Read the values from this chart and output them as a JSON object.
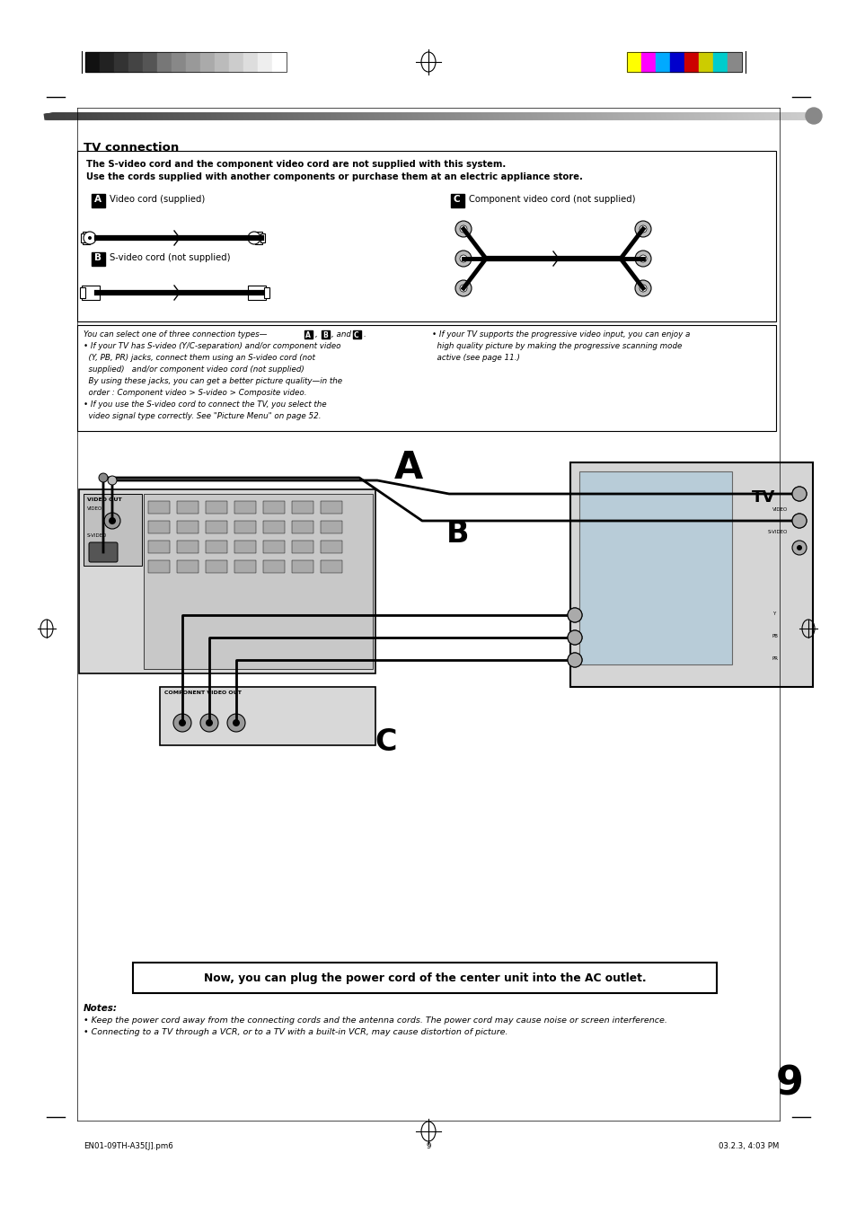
{
  "page_bg": "#ffffff",
  "grayscale_colors": [
    "#111111",
    "#222222",
    "#333333",
    "#444444",
    "#555555",
    "#777777",
    "#888888",
    "#999999",
    "#aaaaaa",
    "#bbbbbb",
    "#cccccc",
    "#dddddd",
    "#eeeeee",
    "#ffffff"
  ],
  "color_bars": [
    "#ffff00",
    "#ff00ff",
    "#00aaff",
    "#0000cc",
    "#cc0000",
    "#cccc00",
    "#00cccc",
    "#888888"
  ],
  "title_text": "TV connection",
  "box1_line1": "The S-video cord and the component video cord are not supplied with this system.",
  "box1_line2": "Use the cords supplied with another components or purchase them at an electric appliance store.",
  "text_A": "Video cord (supplied)",
  "text_B": "S-video cord (not supplied)",
  "text_C": "Component video cord (not supplied)",
  "info_left": [
    "You can select one of three connection types—",
    "• If your TV has S-video (Y/C-separation) and/or component video",
    "  (Y, PB, PR) jacks, connect them using an S-video cord (not",
    "  supplied)   and/or component video cord (not supplied)",
    "  By using these jacks, you can get a better picture quality—in the",
    "  order : Component video > S-video > Composite video.",
    "• If you use the S-video cord to connect the TV, you select the",
    "  video signal type correctly. See \"Picture Menu\" on page 52."
  ],
  "info_right": [
    "• If your TV supports the progressive video input, you can enjoy a",
    "  high quality picture by making the progressive scanning mode",
    "  active (see page 11.)"
  ],
  "bottom_note_label": "Notes:",
  "bottom_note1": "• Keep the power cord away from the connecting cords and the antenna cords. The power cord may cause noise or screen interference.",
  "bottom_note2": "• Connecting to a TV through a VCR, or to a TV with a built-in VCR, may cause distortion of picture.",
  "ac_box_text": "Now, you can plug the power cord of the center unit into the AC outlet.",
  "page_number": "9",
  "footer_left": "EN01-09TH-A35[J].pm6",
  "footer_center": "9",
  "footer_date": "03.2.3, 4:03 PM"
}
